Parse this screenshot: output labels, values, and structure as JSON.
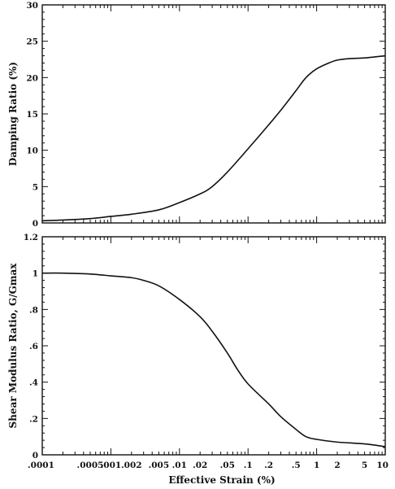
{
  "chart_data": [
    {
      "type": "line",
      "ylabel": "Damping Ratio (%)",
      "xlabel": "",
      "xscale": "log",
      "xlim": [
        0.0001,
        10
      ],
      "ylim": [
        0,
        30
      ],
      "yticks": [
        0,
        5,
        10,
        15,
        20,
        25,
        30
      ],
      "ytick_labels": [
        "0",
        "5",
        "10",
        "15",
        "20",
        "25",
        "30"
      ],
      "grid": false,
      "series": [
        {
          "x": [
            0.0001,
            0.0002,
            0.0005,
            0.001,
            0.002,
            0.005,
            0.01,
            0.02,
            0.03,
            0.05,
            0.1,
            0.2,
            0.3,
            0.5,
            0.7,
            1,
            1.5,
            2,
            3,
            5,
            10
          ],
          "y": [
            0.3,
            0.4,
            0.6,
            0.9,
            1.2,
            1.8,
            2.8,
            4.0,
            5.0,
            7.0,
            10.2,
            13.5,
            15.5,
            18.2,
            20.0,
            21.2,
            22.0,
            22.4,
            22.6,
            22.7,
            23.0
          ]
        }
      ]
    },
    {
      "type": "line",
      "ylabel": "Shear Modulus Ratio, G/Gmax",
      "xlabel": "Effective Strain (%)",
      "xscale": "log",
      "xlim": [
        0.0001,
        10
      ],
      "ylim": [
        0,
        1.2
      ],
      "yticks": [
        0,
        0.2,
        0.4,
        0.6,
        0.8,
        1.0,
        1.2
      ],
      "ytick_labels": [
        "0",
        ".2",
        ".4",
        ".6",
        ".8",
        "1",
        "1.2"
      ],
      "xticks": [
        0.0001,
        0.0005,
        0.001,
        0.002,
        0.005,
        0.01,
        0.02,
        0.05,
        0.1,
        0.2,
        0.5,
        1,
        2,
        5,
        10
      ],
      "xtick_labels": [
        ".0001",
        ".0005",
        ".001",
        ".002",
        ".005",
        ".01",
        ".02",
        ".05",
        ".1",
        ".2",
        ".5",
        "1",
        "2",
        "5",
        "10"
      ],
      "grid": false,
      "series": [
        {
          "x": [
            0.0001,
            0.0002,
            0.0005,
            0.001,
            0.002,
            0.003,
            0.005,
            0.01,
            0.02,
            0.03,
            0.05,
            0.07,
            0.1,
            0.2,
            0.3,
            0.5,
            0.7,
            1,
            2,
            5,
            10
          ],
          "y": [
            1.0,
            1.0,
            0.995,
            0.985,
            0.975,
            0.96,
            0.93,
            0.855,
            0.76,
            0.68,
            0.56,
            0.47,
            0.39,
            0.28,
            0.21,
            0.14,
            0.1,
            0.085,
            0.07,
            0.06,
            0.045
          ]
        }
      ]
    }
  ]
}
